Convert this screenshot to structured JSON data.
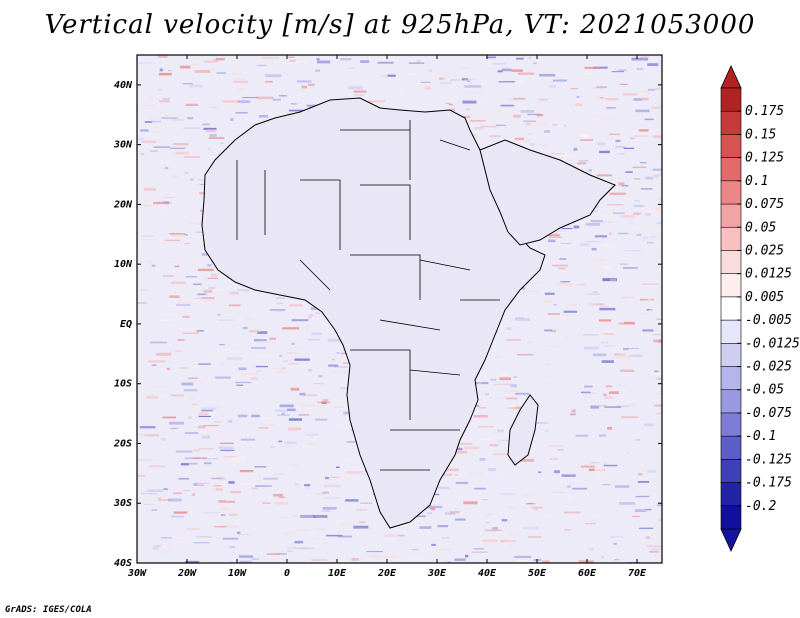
{
  "title": "Vertical velocity [m/s] at 925hPa, VT: 2021053000",
  "credit": "GrADS: IGES/COLA",
  "map": {
    "lon_labels": [
      "30W",
      "20W",
      "10W",
      "0",
      "10E",
      "20E",
      "30E",
      "40E",
      "50E",
      "60E",
      "70E"
    ],
    "lat_labels": [
      "40N",
      "30N",
      "20N",
      "10N",
      "EQ",
      "10S",
      "20S",
      "30S",
      "40S"
    ],
    "lon_range": [
      -30,
      75
    ],
    "lat_range": [
      -40,
      45
    ],
    "background_color": "#ecebf7",
    "land_color": "#e9e6f5",
    "coast_color": "#000000"
  },
  "colorbar": {
    "levels": [
      "0.175",
      "0.15",
      "0.125",
      "0.1",
      "0.075",
      "0.05",
      "0.025",
      "0.0125",
      "0.005",
      "-0.005",
      "-0.0125",
      "-0.025",
      "-0.05",
      "-0.075",
      "-0.1",
      "-0.125",
      "-0.175",
      "-0.2"
    ],
    "colors": [
      "#b22222",
      "#c83a3a",
      "#d85252",
      "#e46a6a",
      "#ec8787",
      "#f2a3a3",
      "#f7c1c1",
      "#fbdcdc",
      "#fdeeee",
      "#ffffff",
      "#e6e6fa",
      "#cfcff4",
      "#b5b5ec",
      "#9a9ae2",
      "#7d7dd6",
      "#5e5ec8",
      "#3f3fb8",
      "#2323a8",
      "#1010a0"
    ],
    "top_arrow_color": "#b22222",
    "bottom_arrow_color": "#1414a0"
  }
}
